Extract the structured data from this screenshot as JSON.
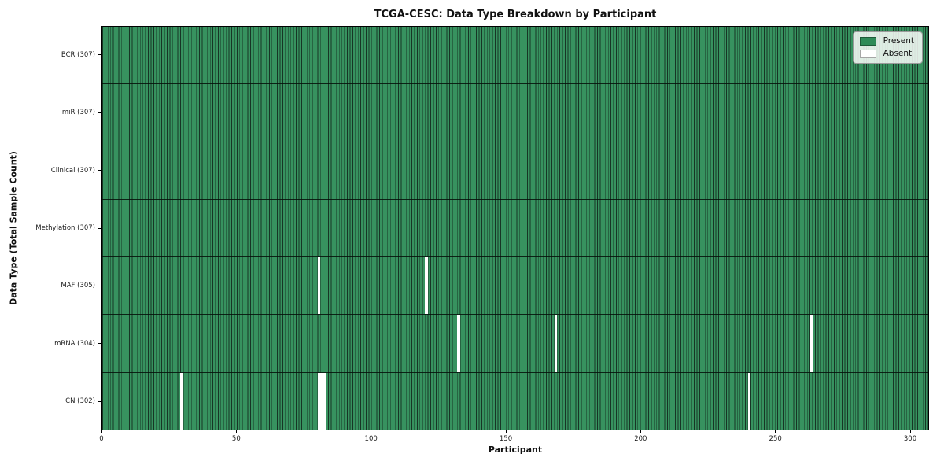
{
  "chart_data": {
    "type": "heatmap",
    "title": "TCGA-CESC: Data Type Breakdown by Participant",
    "xlabel": "Participant",
    "ylabel": "Data Type (Total Sample Count)",
    "n_participants": 307,
    "xlim": [
      0,
      307
    ],
    "x_ticks": [
      0,
      50,
      100,
      150,
      200,
      250,
      300
    ],
    "grid": false,
    "legend": {
      "position": "upper right",
      "entries": [
        {
          "label": "Present",
          "color": "#2e8b57"
        },
        {
          "label": "Absent",
          "color": "#ffffff"
        }
      ]
    },
    "rows": [
      {
        "label": "BCR (307)",
        "data_type": "bcr",
        "total": 307,
        "absent_participants": []
      },
      {
        "label": "miR (307)",
        "data_type": "mir",
        "total": 307,
        "absent_participants": []
      },
      {
        "label": "Clinical (307)",
        "data_type": "clinical",
        "total": 307,
        "absent_participants": []
      },
      {
        "label": "Methylation (307)",
        "data_type": "methylation",
        "total": 307,
        "absent_participants": []
      },
      {
        "label": "MAF (305)",
        "data_type": "maf",
        "total": 305,
        "absent_participants": [
          80,
          120
        ]
      },
      {
        "label": "mRNA (304)",
        "data_type": "mrna",
        "total": 304,
        "absent_participants": [
          132,
          168,
          263
        ]
      },
      {
        "label": "CN (302)",
        "data_type": "cn",
        "total": 302,
        "absent_participants": [
          29,
          80,
          81,
          82,
          240
        ]
      }
    ],
    "colors": {
      "present_cell": "#37925f",
      "cell_edge": "#173525",
      "absent_cell": "#ffffff",
      "row_divider": "#0d1a12",
      "plot_border": "#000000"
    }
  }
}
